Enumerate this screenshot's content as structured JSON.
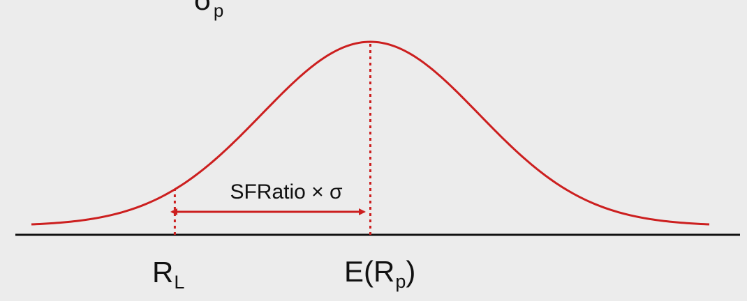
{
  "colors": {
    "background": "#ececec",
    "curve": "#cc1f1f",
    "axis": "#111111",
    "text": "#111111"
  },
  "top_fragment": {
    "main": "σ",
    "sub": "p"
  },
  "distance_label": "SFRatio × σ",
  "marker_left": {
    "main": "R",
    "sub": "L"
  },
  "marker_mean": {
    "prefix": "E(R",
    "sub": "p",
    "suffix": ")"
  },
  "curve": {
    "shape": "normal",
    "mean": 0,
    "sd": 1,
    "x_range": [
      -3.12,
      3.12
    ],
    "threshold_z": -1.8
  }
}
